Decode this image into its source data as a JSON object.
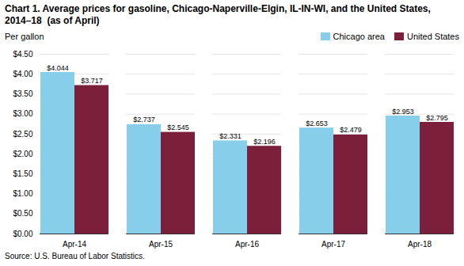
{
  "chart_data": {
    "type": "bar",
    "title": "Chart 1. Average prices for gasoline, Chicago-Naperville-Elgin, IL-IN-WI, and the United States, 2014–18  (as of April)",
    "ylabel": "Per gallon",
    "source": "Source: U.S. Bureau of Labor Statistics.",
    "categories": [
      "Apr-14",
      "Apr-15",
      "Apr-16",
      "Apr-17",
      "Apr-18"
    ],
    "series": [
      {
        "name": "Chicago area",
        "color": "#87CEEB",
        "values": [
          4.044,
          2.737,
          2.331,
          2.653,
          2.953
        ],
        "value_labels": [
          "$4.044",
          "$2.737",
          "$2.331",
          "$2.653",
          "$2.953"
        ]
      },
      {
        "name": "United States",
        "color": "#7B1F3A",
        "values": [
          3.717,
          2.545,
          2.196,
          2.479,
          2.795
        ],
        "value_labels": [
          "$3.717",
          "$2.545",
          "$2.196",
          "$2.479",
          "$2.795"
        ]
      }
    ],
    "ylim": [
      0,
      4.5
    ],
    "yticks": [
      {
        "value": 0.0,
        "label": "$0.00"
      },
      {
        "value": 0.5,
        "label": "$0.50"
      },
      {
        "value": 1.0,
        "label": "$1.00"
      },
      {
        "value": 1.5,
        "label": "$1.50"
      },
      {
        "value": 2.0,
        "label": "$2.00"
      },
      {
        "value": 2.5,
        "label": "$2.50"
      },
      {
        "value": 3.0,
        "label": "$3.00"
      },
      {
        "value": 3.5,
        "label": "$3.50"
      },
      {
        "value": 4.0,
        "label": "$4.00"
      },
      {
        "value": 4.5,
        "label": "$4.50"
      }
    ],
    "grid": true,
    "legend": "upper right",
    "data_labels": true
  }
}
